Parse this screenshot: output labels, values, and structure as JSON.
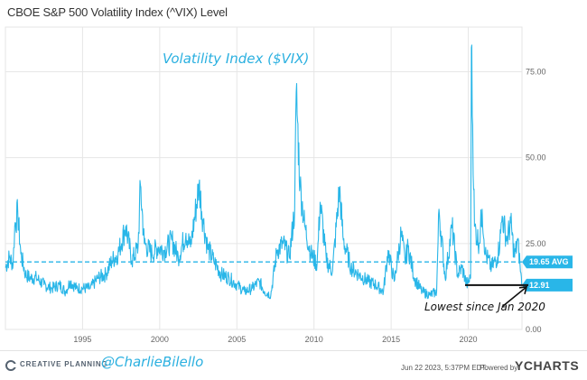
{
  "chart_data": {
    "type": "line",
    "title": "CBOE S&P 500 Volatility Index (^VIX) Level",
    "annotation_title": "Volatility Index ($VIX)",
    "annotation_note": "Lowest since Jan 2020",
    "xlim": [
      1990.0,
      2023.48
    ],
    "ylim": [
      0,
      88
    ],
    "x_ticks": [
      1995,
      2000,
      2005,
      2010,
      2015,
      2020
    ],
    "x_tick_labels": [
      "1995",
      "2000",
      "2005",
      "2010",
      "2015",
      "2020"
    ],
    "y_ticks": [
      0,
      25,
      50,
      75
    ],
    "y_tick_labels": [
      "0.00",
      "25.00",
      "50.00",
      "75.00"
    ],
    "grid": true,
    "average": {
      "value": 19.65,
      "label": "19.65 AVG"
    },
    "last": {
      "x": 2023.47,
      "value": 12.91,
      "label": "12.91"
    },
    "colors": {
      "line": "#29b6e8",
      "grid": "#e6e6e6",
      "annotation": "#2bb0e0"
    },
    "series": [
      {
        "x": [
          1990.0,
          1990.25,
          1990.5,
          1990.6,
          1990.8,
          1991.0,
          1991.3,
          1991.6,
          1992.0,
          1992.5,
          1993.0,
          1993.5,
          1993.9,
          1994.2,
          1994.6,
          1995.0,
          1995.5,
          1996.0,
          1996.5,
          1996.9,
          1997.3,
          1997.8,
          1998.2,
          1998.6,
          1998.75,
          1999.0,
          1999.5,
          1999.9,
          2000.3,
          2000.8,
          2001.2,
          2001.7,
          2002.0,
          2002.55,
          2002.8,
          2003.1,
          2003.5,
          2004.0,
          2004.5,
          2005.0,
          2005.5,
          2006.0,
          2006.45,
          2006.8,
          2007.2,
          2007.6,
          2008.0,
          2008.4,
          2008.75,
          2008.85,
          2009.1,
          2009.4,
          2009.8,
          2010.2,
          2010.4,
          2010.8,
          2011.2,
          2011.65,
          2011.9,
          2012.4,
          2012.9,
          2013.5,
          2014.0,
          2014.5,
          2014.8,
          2015.2,
          2015.65,
          2015.9,
          2016.1,
          2016.5,
          2017.0,
          2017.5,
          2017.95,
          2018.1,
          2018.5,
          2018.95,
          2019.3,
          2019.6,
          2019.9,
          2020.15,
          2020.2,
          2020.4,
          2020.7,
          2020.9,
          2021.1,
          2021.5,
          2021.9,
          2022.1,
          2022.2,
          2022.5,
          2022.75,
          2023.0,
          2023.2,
          2023.35,
          2023.47
        ],
        "values": [
          18,
          21,
          19,
          30,
          34,
          22,
          16,
          15,
          15,
          13,
          12,
          13,
          11,
          14,
          12,
          12,
          12,
          15,
          16,
          20,
          22,
          30,
          20,
          24,
          42,
          25,
          22,
          24,
          23,
          26,
          21,
          28,
          24,
          42,
          32,
          24,
          20,
          16,
          15,
          13,
          11,
          12,
          14,
          11,
          10,
          23,
          25,
          21,
          35,
          69,
          42,
          30,
          22,
          19,
          37,
          20,
          17,
          41,
          26,
          18,
          16,
          14,
          13,
          11,
          23,
          14,
          28,
          20,
          24,
          15,
          11,
          10,
          11,
          35,
          15,
          30,
          16,
          18,
          13,
          15,
          82,
          30,
          25,
          35,
          22,
          18,
          21,
          28,
          33,
          26,
          31,
          21,
          26,
          19,
          12.91
        ]
      }
    ]
  },
  "footer": {
    "brand": "CREATIVE PLANNING",
    "handle": "@CharlieBilello",
    "timestamp": "Jun 22 2023, 5:37PM EDT.",
    "powered_by": "Powered by",
    "provider": "YCHARTS"
  }
}
